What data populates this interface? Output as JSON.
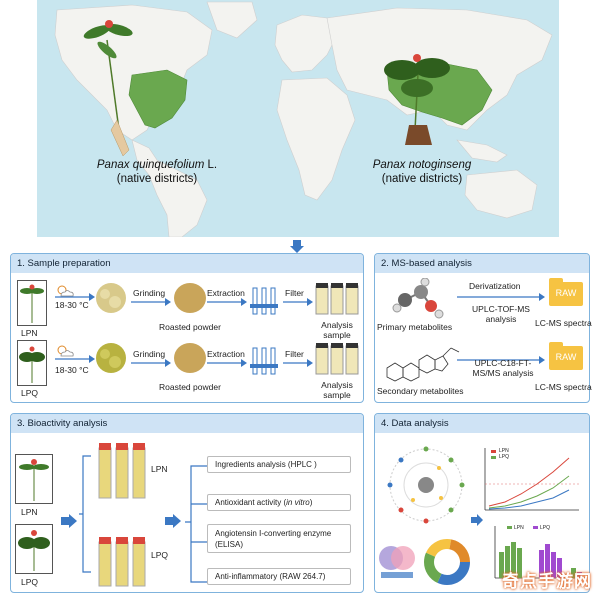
{
  "map": {
    "left_species_name": "Panax quinquefolium",
    "left_species_suffix": " L.",
    "left_species_note": "(native districts)",
    "right_species_name": "Panax notoginseng",
    "right_species_note": "(native districts)",
    "native_district_color": "#6aa84f",
    "ocean_color": "#c8e6ef",
    "land_color": "#f3f3f0"
  },
  "panel1": {
    "title": "1. Sample preparation",
    "temp_top": "18-30 °C",
    "temp_bottom": "18-30 °C",
    "grinding_top": "Grinding",
    "grinding_bottom": "Grinding",
    "extraction_top": "Extraction",
    "extraction_bottom": "Extraction",
    "filter_top": "Filter",
    "filter_bottom": "Filter",
    "roasted_top": "Roasted powder",
    "roasted_bottom": "Roasted powder",
    "analysis_top": "Analysis sample",
    "analysis_bottom": "Analysis sample",
    "plant_top": "LPN",
    "plant_bottom": "LPQ"
  },
  "panel2": {
    "title": "2. MS-based analysis",
    "primary": "Primary metabolites",
    "secondary": "Secondary metabolites",
    "derivatization": "Derivatization",
    "method_top": "UPLC-TOF-MS analysis",
    "method_bottom": "UPLC-C18-FT-MS/MS analysis",
    "raw_top": "RAW",
    "raw_bottom": "RAW",
    "spectra_top": "LC-MS spectra",
    "spectra_bottom": "LC-MS spectra"
  },
  "panel3": {
    "title": "3. Bioactivity analysis",
    "plant_top": "LPN",
    "plant_bottom": "LPQ",
    "group_top": "LPN",
    "group_bottom": "LPQ",
    "item1": "Ingredients analysis (HPLC )",
    "item2_pre": "Antioxidant activity (",
    "item2_it": "in vitro",
    "item2_post": ")",
    "item3": "Angiotensin Ⅰ-converting enzyme (ELISA)",
    "item4": "Anti-inflammatory (RAW 264.7)"
  },
  "panel4": {
    "title": "4. Data analysis",
    "legend_a": "LPN",
    "legend_b": "LPQ",
    "bar_legend_a": "LPN",
    "bar_legend_b": "LPQ"
  },
  "watermark": "奇点手游网",
  "colors": {
    "panel_border": "#7fb3dd",
    "panel_header": "#cfe3f5",
    "arrow": "#3b78c3",
    "folder": "#f6c342",
    "powder": "#c9a55a",
    "tube_fill": "#e8d77c",
    "cap_red": "#d9463b"
  }
}
